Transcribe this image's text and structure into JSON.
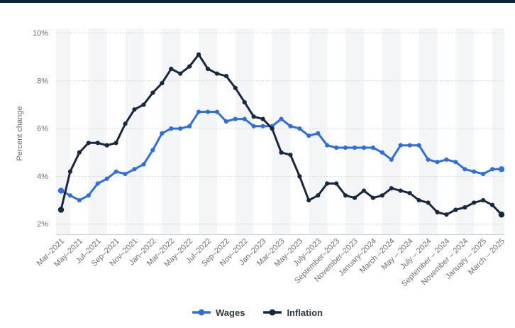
{
  "page": {
    "top_bar_color": "#0d2236",
    "background_color": "#ffffff"
  },
  "chart_data": {
    "type": "line",
    "title": "",
    "ylabel": "Percent change",
    "xlabel": "",
    "grid": "dotted horizontal gridlines, alternating vertical background bands every 2 months",
    "legend_position": "bottom center",
    "y_axis": {
      "min": 2,
      "max": 10,
      "tick_values": [
        2,
        4,
        6,
        8,
        10
      ],
      "tick_labels": [
        "2%",
        "4%",
        "6%",
        "8%",
        "10%"
      ]
    },
    "x_axis": {
      "total_points": 49,
      "points_per_labeled_tick": 2,
      "tick_labels": [
        "Mar–2021",
        "May–2021",
        "Jul–2021",
        "Sep–2021",
        "Nov–2021",
        "Jan–2022",
        "Mar–2022",
        "May–2022",
        "Jul–2022",
        "Sep–2022",
        "Nov–2022",
        "Jan–2023",
        "Mar–2023",
        "May–2023",
        "July–2023",
        "September–2023",
        "November–2023",
        "January–2024",
        "March –2024",
        "May – 2024",
        "July – 2024",
        "September – 2024",
        "November – 2024",
        "January – 2025",
        "March – 2025"
      ]
    },
    "styling": {
      "band_color": "#f4f5f7",
      "grid_color": "#c9c9c9",
      "axis_line_color": "#ccd0d6",
      "tick_text_color": "#6e6e6e"
    },
    "series": [
      {
        "name": "Wages",
        "color": "#2e6fdb",
        "values": [
          3.4,
          3.2,
          3.0,
          3.2,
          3.7,
          3.9,
          4.2,
          4.1,
          4.3,
          4.5,
          5.1,
          5.8,
          6.0,
          6.0,
          6.1,
          6.7,
          6.7,
          6.7,
          6.3,
          6.4,
          6.4,
          6.1,
          6.1,
          6.1,
          6.4,
          6.1,
          6.0,
          5.7,
          5.8,
          5.3,
          5.2,
          5.2,
          5.2,
          5.2,
          5.2,
          5.0,
          4.7,
          5.3,
          5.3,
          5.3,
          4.7,
          4.6,
          4.7,
          4.6,
          4.3,
          4.2,
          4.1,
          4.3,
          4.3
        ]
      },
      {
        "name": "Inflation",
        "color": "#18293f",
        "values": [
          2.6,
          4.2,
          5.0,
          5.4,
          5.4,
          5.3,
          5.4,
          6.2,
          6.8,
          7.0,
          7.5,
          7.9,
          8.5,
          8.3,
          8.6,
          9.1,
          8.5,
          8.3,
          8.2,
          7.7,
          7.1,
          6.5,
          6.4,
          6.0,
          5.0,
          4.9,
          4.0,
          3.0,
          3.2,
          3.7,
          3.7,
          3.2,
          3.1,
          3.4,
          3.1,
          3.2,
          3.5,
          3.4,
          3.3,
          3.0,
          2.9,
          2.5,
          2.4,
          2.6,
          2.7,
          2.9,
          3.0,
          2.8,
          2.4
        ]
      }
    ]
  }
}
